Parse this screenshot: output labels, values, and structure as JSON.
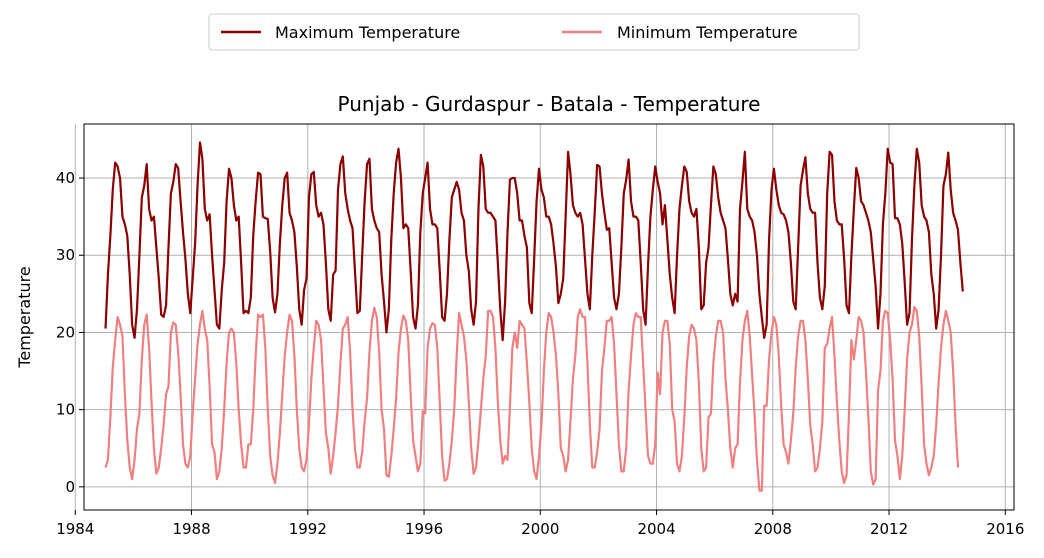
{
  "chart_data": {
    "type": "line",
    "title": "Punjab - Gurdaspur - Batala - Temperature",
    "xlabel": "",
    "ylabel": "Temperature",
    "xlim": [
      1984.3,
      2016.3
    ],
    "ylim": [
      -3,
      47
    ],
    "x_ticks": [
      1984,
      1988,
      1992,
      1996,
      2000,
      2004,
      2008,
      2012,
      2016
    ],
    "y_ticks": [
      0,
      10,
      20,
      30,
      40
    ],
    "grid": true,
    "legend": "top-center, outside plot",
    "x_start": 1985.04,
    "x_step": 0.08333,
    "series": [
      {
        "name": "Maximum Temperature",
        "color": "#8b0000",
        "values": [
          20.5,
          27.5,
          32.5,
          38.5,
          42.0,
          41.5,
          40.0,
          35.0,
          34.0,
          32.5,
          27.5,
          21.0,
          19.3,
          23.0,
          30.0,
          37.5,
          39.0,
          41.8,
          36.0,
          34.5,
          35.0,
          31.0,
          27.0,
          22.3,
          22.0,
          23.5,
          31.0,
          38.0,
          39.5,
          41.8,
          41.3,
          37.0,
          33.0,
          29.5,
          25.0,
          22.5,
          27.0,
          31.5,
          39.0,
          44.6,
          42.5,
          36.0,
          34.5,
          35.3,
          30.0,
          25.5,
          21.0,
          20.5,
          25.5,
          29.0,
          37.0,
          41.2,
          40.0,
          36.5,
          34.5,
          35.0,
          29.0,
          22.5,
          22.8,
          22.5,
          24.5,
          32.5,
          37.0,
          40.7,
          40.5,
          35.0,
          34.8,
          34.7,
          30.5,
          24.5,
          22.6,
          25.0,
          31.5,
          36.5,
          40.0,
          40.7,
          35.5,
          34.5,
          33.0,
          28.5,
          23.0,
          21.0,
          25.5,
          27.0,
          37.5,
          40.5,
          40.8,
          36.5,
          35.0,
          35.5,
          34.0,
          29.0,
          23.0,
          21.5,
          27.5,
          28.0,
          38.5,
          41.8,
          42.8,
          38.0,
          36.0,
          34.5,
          33.5,
          28.0,
          22.5,
          22.8,
          30.0,
          37.0,
          41.8,
          42.5,
          36.0,
          34.5,
          33.5,
          33.0,
          27.5,
          24.0,
          20.0,
          23.0,
          32.0,
          38.0,
          42.0,
          43.8,
          40.0,
          33.5,
          34.0,
          33.5,
          28.0,
          22.0,
          20.5,
          23.5,
          33.0,
          38.0,
          40.0,
          42.0,
          36.0,
          34.0,
          34.0,
          33.5,
          28.0,
          22.0,
          21.5,
          25.0,
          32.0,
          37.5,
          38.5,
          39.5,
          38.5,
          35.5,
          34.5,
          30.0,
          28.0,
          23.0,
          21.0,
          24.0,
          36.0,
          43.0,
          41.5,
          36.0,
          35.5,
          35.5,
          35.0,
          34.5,
          29.0,
          23.0,
          19.0,
          24.0,
          33.0,
          39.8,
          40.0,
          40.0,
          38.0,
          34.5,
          34.5,
          32.5,
          31.0,
          23.8,
          22.5,
          29.5,
          37.0,
          41.2,
          38.5,
          37.5,
          35.0,
          35.0,
          34.0,
          31.5,
          28.5,
          23.8,
          25.0,
          27.0,
          35.0,
          43.4,
          40.5,
          36.5,
          35.5,
          35.0,
          35.5,
          34.0,
          29.5,
          25.0,
          23.0,
          30.0,
          35.5,
          41.7,
          41.5,
          38.0,
          35.5,
          33.3,
          33.5,
          29.0,
          24.5,
          23.0,
          25.0,
          31.0,
          38.0,
          39.8,
          42.4,
          37.0,
          35.0,
          35.0,
          34.5,
          29.0,
          23.0,
          21.0,
          28.5,
          35.0,
          38.5,
          41.5,
          39.5,
          38.0,
          34.0,
          36.5,
          32.0,
          27.5,
          24.5,
          22.5,
          30.0,
          36.0,
          39.0,
          41.5,
          40.8,
          37.0,
          35.5,
          35.0,
          36.0,
          31.0,
          23.0,
          23.5,
          29.0,
          31.0,
          36.5,
          41.5,
          40.5,
          37.5,
          35.5,
          34.5,
          33.5,
          29.5,
          25.0,
          23.5,
          25.0,
          24.0,
          36.0,
          39.5,
          43.4,
          36.0,
          35.0,
          34.5,
          33.0,
          30.0,
          25.0,
          22.0,
          19.3,
          21.0,
          32.0,
          38.5,
          41.2,
          38.5,
          36.5,
          35.5,
          35.3,
          34.5,
          33.0,
          29.0,
          24.0,
          23.0,
          31.0,
          39.0,
          41.0,
          42.7,
          38.0,
          36.0,
          35.5,
          35.5,
          29.0,
          24.5,
          23.0,
          26.0,
          38.0,
          43.4,
          43.0,
          37.0,
          34.5,
          34.0,
          34.0,
          29.5,
          23.5,
          22.5,
          30.0,
          36.0,
          41.3,
          40.0,
          37.0,
          36.5,
          35.5,
          34.5,
          33.0,
          29.5,
          26.0,
          20.5,
          25.0,
          34.0,
          38.0,
          43.8,
          42.0,
          41.8,
          34.8,
          34.8,
          34.0,
          31.5,
          26.5,
          21.0,
          22.5,
          32.0,
          39.0,
          43.8,
          42.0,
          36.5,
          35.0,
          34.5,
          33.0,
          27.5,
          25.0,
          20.5,
          23.0,
          30.0,
          39.0,
          40.5,
          43.3,
          38.5,
          35.5,
          34.5,
          33.3,
          29.0,
          25.3
        ]
      },
      {
        "name": "Minimum Temperature",
        "color": "#f08080",
        "values": [
          2.5,
          3.5,
          9.0,
          15.5,
          19.0,
          22.0,
          21.0,
          19.5,
          12.0,
          6.0,
          2.5,
          1.0,
          3.5,
          7.5,
          9.5,
          16.5,
          21.0,
          22.3,
          18.0,
          11.0,
          5.0,
          1.7,
          2.5,
          5.0,
          8.0,
          12.0,
          13.0,
          20.0,
          21.3,
          21.0,
          17.5,
          12.0,
          5.5,
          3.0,
          2.5,
          4.0,
          9.5,
          14.0,
          18.5,
          21.0,
          22.8,
          20.5,
          19.0,
          13.0,
          5.5,
          4.5,
          1.0,
          2.0,
          5.0,
          10.0,
          16.0,
          20.0,
          20.5,
          20.0,
          16.0,
          10.0,
          5.5,
          2.5,
          2.5,
          5.5,
          5.5,
          10.0,
          17.0,
          22.3,
          22.0,
          22.3,
          18.0,
          10.0,
          4.0,
          1.5,
          0.5,
          3.0,
          7.0,
          12.0,
          17.0,
          20.0,
          22.3,
          21.5,
          17.0,
          10.0,
          5.0,
          2.5,
          2.0,
          3.5,
          8.0,
          14.0,
          18.0,
          21.5,
          21.0,
          19.0,
          13.0,
          7.0,
          5.0,
          1.7,
          4.0,
          7.0,
          10.5,
          16.0,
          20.5,
          21.0,
          22.0,
          17.5,
          10.0,
          5.0,
          2.5,
          2.5,
          4.5,
          8.5,
          11.5,
          17.5,
          21.5,
          23.2,
          22.0,
          17.5,
          10.0,
          7.5,
          1.5,
          1.3,
          4.0,
          7.5,
          11.5,
          17.5,
          20.5,
          22.2,
          21.5,
          19.0,
          12.0,
          6.0,
          4.0,
          2.0,
          3.0,
          9.8,
          9.5,
          18.0,
          20.5,
          21.2,
          21.0,
          18.0,
          11.0,
          4.0,
          0.8,
          1.0,
          3.0,
          6.0,
          10.0,
          17.0,
          22.5,
          21.0,
          19.5,
          16.5,
          11.0,
          5.0,
          1.7,
          2.5,
          6.0,
          10.0,
          14.0,
          17.0,
          22.8,
          22.8,
          22.0,
          18.0,
          11.0,
          6.0,
          3.0,
          4.0,
          3.5,
          10.5,
          18.0,
          20.0,
          18.0,
          21.5,
          21.0,
          20.5,
          16.0,
          11.0,
          5.0,
          2.0,
          1.0,
          4.0,
          8.0,
          15.0,
          20.0,
          22.5,
          22.0,
          20.0,
          17.0,
          12.0,
          5.0,
          4.0,
          2.0,
          3.5,
          8.5,
          14.0,
          17.0,
          22.0,
          23.0,
          22.0,
          22.0,
          16.0,
          8.0,
          2.5,
          2.5,
          4.5,
          7.5,
          15.0,
          18.0,
          21.5,
          21.5,
          22.0,
          18.5,
          12.0,
          5.5,
          2.0,
          2.0,
          5.0,
          12.5,
          17.0,
          21.0,
          22.5,
          22.0,
          22.0,
          16.0,
          10.0,
          4.0,
          3.0,
          3.0,
          5.5,
          14.8,
          12.0,
          20.0,
          21.5,
          21.5,
          18.5,
          10.0,
          8.5,
          3.0,
          2.0,
          4.0,
          9.0,
          15.5,
          19.5,
          21.0,
          20.5,
          19.0,
          13.5,
          5.0,
          2.0,
          2.5,
          9.0,
          9.5,
          16.0,
          19.5,
          21.5,
          21.5,
          20.0,
          14.0,
          10.0,
          5.0,
          2.5,
          5.0,
          5.5,
          13.5,
          19.0,
          21.5,
          22.8,
          19.5,
          14.5,
          9.5,
          3.5,
          -0.5,
          -0.5,
          10.5,
          10.5,
          16.5,
          20.0,
          22.0,
          21.0,
          17.0,
          10.5,
          5.5,
          4.5,
          3.0,
          6.0,
          9.5,
          15.5,
          19.5,
          21.5,
          21.5,
          19.0,
          14.0,
          8.0,
          5.5,
          2.0,
          2.5,
          5.0,
          8.5,
          18.0,
          18.5,
          20.5,
          22.0,
          17.0,
          11.0,
          6.0,
          2.0,
          0.5,
          1.5,
          9.5,
          19.0,
          16.5,
          19.0,
          22.0,
          21.5,
          20.0,
          15.0,
          9.0,
          2.0,
          0.3,
          1.0,
          12.5,
          15.0,
          21.5,
          22.8,
          22.5,
          19.0,
          14.0,
          6.0,
          4.0,
          1.0,
          4.0,
          10.0,
          16.5,
          20.0,
          21.0,
          23.3,
          22.8,
          19.5,
          13.0,
          5.5,
          3.0,
          1.5,
          2.5,
          4.0,
          8.0,
          13.5,
          18.0,
          21.0,
          22.8,
          21.5,
          20.0,
          15.0,
          8.0,
          2.5
        ]
      }
    ]
  }
}
